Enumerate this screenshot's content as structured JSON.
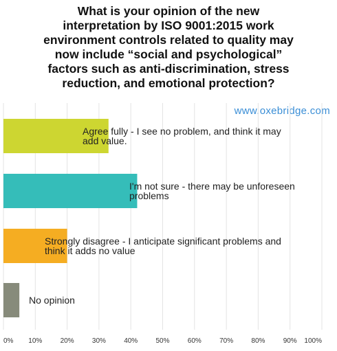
{
  "chart_data": {
    "type": "bar",
    "orientation": "horizontal",
    "title_lines": [
      "What is your opinion of the new",
      "interpretation by ISO 9001:2015 work",
      "environment controls related to quality may",
      "now include “social and psychological”",
      "factors such as anti-discrimination, stress",
      "reduction, and emotional protection?"
    ],
    "watermark": "www.oxebridge.com",
    "categories": [
      [
        "Agree fully - I see no problem, and think it may",
        "add value."
      ],
      [
        "I'm not sure - there may be unforeseen",
        "problems"
      ],
      [
        "Strongly disagree - I anticipate significant problems and",
        "think it adds no value"
      ],
      [
        "No opinion"
      ]
    ],
    "values": [
      33,
      42,
      20,
      5
    ],
    "colors": [
      "#cdd631",
      "#35bdb9",
      "#f5ad22",
      "#878b7b"
    ],
    "xlim": [
      0,
      100
    ],
    "x_ticks": [
      "0%",
      "10%",
      "20%",
      "30%",
      "40%",
      "50%",
      "60%",
      "70%",
      "80%",
      "90%",
      "100%"
    ],
    "grid": true
  }
}
